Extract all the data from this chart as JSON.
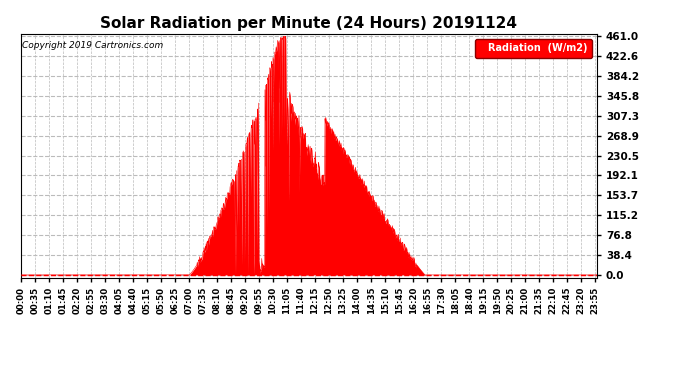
{
  "title": "Solar Radiation per Minute (24 Hours) 20191124",
  "copyright": "Copyright 2019 Cartronics.com",
  "legend_text": "Radiation  (W/m2)",
  "yticks": [
    0.0,
    38.4,
    76.8,
    115.2,
    153.7,
    192.1,
    230.5,
    268.9,
    307.3,
    345.8,
    384.2,
    422.6,
    461.0
  ],
  "ymax": 461.0,
  "fill_color": "#FF0000",
  "background_color": "#FFFFFF",
  "title_fontsize": 11,
  "total_minutes": 1440,
  "xtick_labels": [
    "00:00",
    "00:35",
    "01:10",
    "01:45",
    "02:20",
    "02:55",
    "03:30",
    "04:05",
    "04:40",
    "05:15",
    "05:50",
    "06:25",
    "07:00",
    "07:35",
    "08:10",
    "08:45",
    "09:20",
    "09:55",
    "10:30",
    "11:05",
    "11:40",
    "12:15",
    "12:50",
    "13:25",
    "14:00",
    "14:35",
    "15:10",
    "15:45",
    "16:20",
    "16:55",
    "17:30",
    "18:05",
    "18:40",
    "19:15",
    "19:50",
    "20:25",
    "21:00",
    "21:35",
    "22:10",
    "22:45",
    "23:20",
    "23:55"
  ],
  "xtick_positions": [
    0,
    35,
    70,
    105,
    140,
    175,
    210,
    245,
    280,
    315,
    350,
    385,
    420,
    455,
    490,
    525,
    560,
    595,
    630,
    665,
    700,
    735,
    770,
    805,
    840,
    875,
    910,
    945,
    980,
    1015,
    1050,
    1085,
    1120,
    1155,
    1190,
    1225,
    1260,
    1295,
    1330,
    1365,
    1400,
    1435
  ],
  "sunrise": 420,
  "sunset": 1010,
  "peak_time": 645,
  "peak_value": 455,
  "secondary_start": 775,
  "secondary_end": 870,
  "secondary_peak": 140,
  "scatter_end": 990
}
